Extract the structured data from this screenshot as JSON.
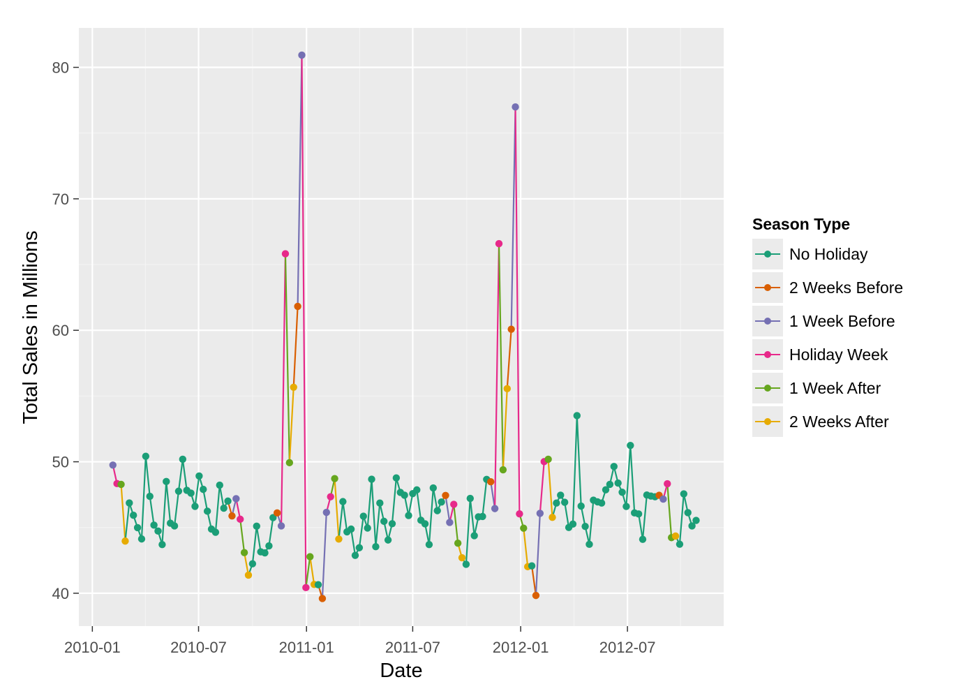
{
  "chart_data": {
    "type": "line",
    "title": "",
    "xlabel": "Date",
    "ylabel": "Total Sales in Millions",
    "x_ticks": [
      "2010-01",
      "2010-07",
      "2011-01",
      "2011-07",
      "2012-01",
      "2012-07"
    ],
    "y_ticks": [
      40,
      50,
      60,
      70,
      80
    ],
    "xlim": [
      "2009-12-09",
      "2012-12-12"
    ],
    "ylim": [
      37.5,
      83.0
    ],
    "grid": true,
    "background": "#ebebeb",
    "legend": {
      "title": "Season Type",
      "position": "right",
      "entries": [
        {
          "name": "No Holiday",
          "color": "#1b9e77"
        },
        {
          "name": "2 Weeks Before",
          "color": "#d95f02"
        },
        {
          "name": "1 Week Before",
          "color": "#7570b3"
        },
        {
          "name": "Holiday Week",
          "color": "#e7298a"
        },
        {
          "name": "1 Week After",
          "color": "#66a61e"
        },
        {
          "name": "2 Weeks After",
          "color": "#e6ab02"
        }
      ]
    },
    "series": [
      {
        "name": "Total Sales",
        "points": [
          {
            "x": "2010-02-05",
            "y": 49.75,
            "type": "1 Week Before"
          },
          {
            "x": "2010-02-12",
            "y": 48.34,
            "type": "Holiday Week"
          },
          {
            "x": "2010-02-19",
            "y": 48.28,
            "type": "1 Week After"
          },
          {
            "x": "2010-02-26",
            "y": 43.97,
            "type": "2 Weeks After"
          },
          {
            "x": "2010-03-05",
            "y": 46.87,
            "type": "No Holiday"
          },
          {
            "x": "2010-03-12",
            "y": 45.93,
            "type": "No Holiday"
          },
          {
            "x": "2010-03-19",
            "y": 44.99,
            "type": "No Holiday"
          },
          {
            "x": "2010-03-26",
            "y": 44.13,
            "type": "No Holiday"
          },
          {
            "x": "2010-04-02",
            "y": 50.42,
            "type": "No Holiday"
          },
          {
            "x": "2010-04-09",
            "y": 47.37,
            "type": "No Holiday"
          },
          {
            "x": "2010-04-16",
            "y": 45.18,
            "type": "No Holiday"
          },
          {
            "x": "2010-04-23",
            "y": 44.73,
            "type": "No Holiday"
          },
          {
            "x": "2010-04-30",
            "y": 43.7,
            "type": "No Holiday"
          },
          {
            "x": "2010-05-07",
            "y": 48.5,
            "type": "No Holiday"
          },
          {
            "x": "2010-05-14",
            "y": 45.33,
            "type": "No Holiday"
          },
          {
            "x": "2010-05-21",
            "y": 45.12,
            "type": "No Holiday"
          },
          {
            "x": "2010-05-28",
            "y": 47.76,
            "type": "No Holiday"
          },
          {
            "x": "2010-06-04",
            "y": 50.19,
            "type": "No Holiday"
          },
          {
            "x": "2010-06-11",
            "y": 47.83,
            "type": "No Holiday"
          },
          {
            "x": "2010-06-18",
            "y": 47.62,
            "type": "No Holiday"
          },
          {
            "x": "2010-06-25",
            "y": 46.61,
            "type": "No Holiday"
          },
          {
            "x": "2010-07-02",
            "y": 48.92,
            "type": "No Holiday"
          },
          {
            "x": "2010-07-09",
            "y": 47.9,
            "type": "No Holiday"
          },
          {
            "x": "2010-07-16",
            "y": 46.24,
            "type": "No Holiday"
          },
          {
            "x": "2010-07-23",
            "y": 44.88,
            "type": "No Holiday"
          },
          {
            "x": "2010-07-30",
            "y": 44.64,
            "type": "No Holiday"
          },
          {
            "x": "2010-08-06",
            "y": 48.22,
            "type": "No Holiday"
          },
          {
            "x": "2010-08-13",
            "y": 46.47,
            "type": "No Holiday"
          },
          {
            "x": "2010-08-20",
            "y": 47.01,
            "type": "No Holiday"
          },
          {
            "x": "2010-08-27",
            "y": 45.88,
            "type": "2 Weeks Before"
          },
          {
            "x": "2010-09-03",
            "y": 47.19,
            "type": "1 Week Before"
          },
          {
            "x": "2010-09-10",
            "y": 45.63,
            "type": "Holiday Week"
          },
          {
            "x": "2010-09-17",
            "y": 43.09,
            "type": "1 Week After"
          },
          {
            "x": "2010-09-24",
            "y": 41.38,
            "type": "2 Weeks After"
          },
          {
            "x": "2010-10-01",
            "y": 42.24,
            "type": "No Holiday"
          },
          {
            "x": "2010-10-08",
            "y": 45.1,
            "type": "No Holiday"
          },
          {
            "x": "2010-10-15",
            "y": 43.15,
            "type": "No Holiday"
          },
          {
            "x": "2010-10-22",
            "y": 43.07,
            "type": "No Holiday"
          },
          {
            "x": "2010-10-29",
            "y": 43.6,
            "type": "No Holiday"
          },
          {
            "x": "2010-11-05",
            "y": 45.75,
            "type": "No Holiday"
          },
          {
            "x": "2010-11-12",
            "y": 46.11,
            "type": "2 Weeks Before"
          },
          {
            "x": "2010-11-19",
            "y": 45.12,
            "type": "1 Week Before"
          },
          {
            "x": "2010-11-26",
            "y": 65.82,
            "type": "Holiday Week"
          },
          {
            "x": "2010-12-03",
            "y": 49.93,
            "type": "1 Week After"
          },
          {
            "x": "2010-12-10",
            "y": 55.67,
            "type": "2 Weeks After"
          },
          {
            "x": "2010-12-17",
            "y": 61.82,
            "type": "2 Weeks Before"
          },
          {
            "x": "2010-12-24",
            "y": 80.93,
            "type": "1 Week Before"
          },
          {
            "x": "2010-12-31",
            "y": 40.43,
            "type": "Holiday Week"
          },
          {
            "x": "2011-01-07",
            "y": 42.78,
            "type": "1 Week After"
          },
          {
            "x": "2011-01-14",
            "y": 40.67,
            "type": "2 Weeks After"
          },
          {
            "x": "2011-01-21",
            "y": 40.65,
            "type": "No Holiday"
          },
          {
            "x": "2011-01-28",
            "y": 39.6,
            "type": "2 Weeks Before"
          },
          {
            "x": "2011-02-04",
            "y": 46.15,
            "type": "1 Week Before"
          },
          {
            "x": "2011-02-11",
            "y": 47.34,
            "type": "Holiday Week"
          },
          {
            "x": "2011-02-18",
            "y": 48.72,
            "type": "1 Week After"
          },
          {
            "x": "2011-02-25",
            "y": 44.12,
            "type": "2 Weeks After"
          },
          {
            "x": "2011-03-04",
            "y": 46.97,
            "type": "No Holiday"
          },
          {
            "x": "2011-03-11",
            "y": 44.67,
            "type": "No Holiday"
          },
          {
            "x": "2011-03-18",
            "y": 44.88,
            "type": "No Holiday"
          },
          {
            "x": "2011-03-25",
            "y": 42.88,
            "type": "No Holiday"
          },
          {
            "x": "2011-04-01",
            "y": 43.46,
            "type": "No Holiday"
          },
          {
            "x": "2011-04-08",
            "y": 45.86,
            "type": "No Holiday"
          },
          {
            "x": "2011-04-15",
            "y": 44.96,
            "type": "No Holiday"
          },
          {
            "x": "2011-04-22",
            "y": 48.67,
            "type": "No Holiday"
          },
          {
            "x": "2011-04-29",
            "y": 43.54,
            "type": "No Holiday"
          },
          {
            "x": "2011-05-06",
            "y": 46.86,
            "type": "No Holiday"
          },
          {
            "x": "2011-05-13",
            "y": 45.47,
            "type": "No Holiday"
          },
          {
            "x": "2011-05-20",
            "y": 44.05,
            "type": "No Holiday"
          },
          {
            "x": "2011-05-27",
            "y": 45.29,
            "type": "No Holiday"
          },
          {
            "x": "2011-06-03",
            "y": 48.77,
            "type": "No Holiday"
          },
          {
            "x": "2011-06-10",
            "y": 47.67,
            "type": "No Holiday"
          },
          {
            "x": "2011-06-17",
            "y": 47.46,
            "type": "No Holiday"
          },
          {
            "x": "2011-06-24",
            "y": 45.91,
            "type": "No Holiday"
          },
          {
            "x": "2011-07-01",
            "y": 47.58,
            "type": "No Holiday"
          },
          {
            "x": "2011-07-08",
            "y": 47.86,
            "type": "No Holiday"
          },
          {
            "x": "2011-07-15",
            "y": 45.55,
            "type": "No Holiday"
          },
          {
            "x": "2011-07-22",
            "y": 45.28,
            "type": "No Holiday"
          },
          {
            "x": "2011-07-29",
            "y": 43.7,
            "type": "No Holiday"
          },
          {
            "x": "2011-08-05",
            "y": 48.01,
            "type": "No Holiday"
          },
          {
            "x": "2011-08-12",
            "y": 46.28,
            "type": "No Holiday"
          },
          {
            "x": "2011-08-19",
            "y": 46.94,
            "type": "No Holiday"
          },
          {
            "x": "2011-08-26",
            "y": 47.44,
            "type": "2 Weeks Before"
          },
          {
            "x": "2011-09-02",
            "y": 45.39,
            "type": "1 Week Before"
          },
          {
            "x": "2011-09-09",
            "y": 46.76,
            "type": "Holiday Week"
          },
          {
            "x": "2011-09-16",
            "y": 43.81,
            "type": "1 Week After"
          },
          {
            "x": "2011-09-23",
            "y": 42.7,
            "type": "2 Weeks After"
          },
          {
            "x": "2011-09-30",
            "y": 42.2,
            "type": "No Holiday"
          },
          {
            "x": "2011-10-07",
            "y": 47.21,
            "type": "No Holiday"
          },
          {
            "x": "2011-10-14",
            "y": 44.38,
            "type": "No Holiday"
          },
          {
            "x": "2011-10-21",
            "y": 45.81,
            "type": "No Holiday"
          },
          {
            "x": "2011-10-28",
            "y": 45.84,
            "type": "No Holiday"
          },
          {
            "x": "2011-11-04",
            "y": 48.66,
            "type": "No Holiday"
          },
          {
            "x": "2011-11-11",
            "y": 48.48,
            "type": "2 Weeks Before"
          },
          {
            "x": "2011-11-18",
            "y": 46.44,
            "type": "1 Week Before"
          },
          {
            "x": "2011-11-25",
            "y": 66.59,
            "type": "Holiday Week"
          },
          {
            "x": "2011-12-02",
            "y": 49.39,
            "type": "1 Week After"
          },
          {
            "x": "2011-12-09",
            "y": 55.56,
            "type": "2 Weeks After"
          },
          {
            "x": "2011-12-16",
            "y": 60.08,
            "type": "2 Weeks Before"
          },
          {
            "x": "2011-12-23",
            "y": 76.99,
            "type": "1 Week Before"
          },
          {
            "x": "2011-12-30",
            "y": 46.04,
            "type": "Holiday Week"
          },
          {
            "x": "2012-01-06",
            "y": 44.95,
            "type": "1 Week After"
          },
          {
            "x": "2012-01-13",
            "y": 42.02,
            "type": "2 Weeks After"
          },
          {
            "x": "2012-01-20",
            "y": 42.08,
            "type": "No Holiday"
          },
          {
            "x": "2012-01-27",
            "y": 39.83,
            "type": "2 Weeks Before"
          },
          {
            "x": "2012-02-03",
            "y": 46.08,
            "type": "1 Week Before"
          },
          {
            "x": "2012-02-10",
            "y": 50.01,
            "type": "Holiday Week"
          },
          {
            "x": "2012-02-17",
            "y": 50.19,
            "type": "1 Week After"
          },
          {
            "x": "2012-02-24",
            "y": 45.77,
            "type": "2 Weeks After"
          },
          {
            "x": "2012-03-02",
            "y": 46.86,
            "type": "No Holiday"
          },
          {
            "x": "2012-03-09",
            "y": 47.46,
            "type": "No Holiday"
          },
          {
            "x": "2012-03-16",
            "y": 46.92,
            "type": "No Holiday"
          },
          {
            "x": "2012-03-23",
            "y": 45.0,
            "type": "No Holiday"
          },
          {
            "x": "2012-03-30",
            "y": 45.26,
            "type": "No Holiday"
          },
          {
            "x": "2012-04-06",
            "y": 53.51,
            "type": "No Holiday"
          },
          {
            "x": "2012-04-13",
            "y": 46.63,
            "type": "No Holiday"
          },
          {
            "x": "2012-04-20",
            "y": 45.08,
            "type": "No Holiday"
          },
          {
            "x": "2012-04-27",
            "y": 43.72,
            "type": "No Holiday"
          },
          {
            "x": "2012-05-04",
            "y": 47.08,
            "type": "No Holiday"
          },
          {
            "x": "2012-05-11",
            "y": 46.95,
            "type": "No Holiday"
          },
          {
            "x": "2012-05-18",
            "y": 46.86,
            "type": "No Holiday"
          },
          {
            "x": "2012-05-25",
            "y": 47.87,
            "type": "No Holiday"
          },
          {
            "x": "2012-06-01",
            "y": 48.28,
            "type": "No Holiday"
          },
          {
            "x": "2012-06-08",
            "y": 49.64,
            "type": "No Holiday"
          },
          {
            "x": "2012-06-15",
            "y": 48.38,
            "type": "No Holiday"
          },
          {
            "x": "2012-06-22",
            "y": 47.68,
            "type": "No Holiday"
          },
          {
            "x": "2012-06-29",
            "y": 46.6,
            "type": "No Holiday"
          },
          {
            "x": "2012-07-06",
            "y": 51.24,
            "type": "No Holiday"
          },
          {
            "x": "2012-07-13",
            "y": 46.11,
            "type": "No Holiday"
          },
          {
            "x": "2012-07-20",
            "y": 46.03,
            "type": "No Holiday"
          },
          {
            "x": "2012-07-27",
            "y": 44.1,
            "type": "No Holiday"
          },
          {
            "x": "2012-08-03",
            "y": 47.47,
            "type": "No Holiday"
          },
          {
            "x": "2012-08-10",
            "y": 47.39,
            "type": "No Holiday"
          },
          {
            "x": "2012-08-17",
            "y": 47.34,
            "type": "No Holiday"
          },
          {
            "x": "2012-08-24",
            "y": 47.45,
            "type": "2 Weeks Before"
          },
          {
            "x": "2012-08-31",
            "y": 47.16,
            "type": "1 Week Before"
          },
          {
            "x": "2012-09-07",
            "y": 48.33,
            "type": "Holiday Week"
          },
          {
            "x": "2012-09-14",
            "y": 44.23,
            "type": "1 Week After"
          },
          {
            "x": "2012-09-21",
            "y": 44.35,
            "type": "2 Weeks After"
          },
          {
            "x": "2012-09-28",
            "y": 43.73,
            "type": "No Holiday"
          },
          {
            "x": "2012-10-05",
            "y": 47.56,
            "type": "No Holiday"
          },
          {
            "x": "2012-10-12",
            "y": 46.13,
            "type": "No Holiday"
          },
          {
            "x": "2012-10-19",
            "y": 45.12,
            "type": "No Holiday"
          },
          {
            "x": "2012-10-26",
            "y": 45.54,
            "type": "No Holiday"
          }
        ]
      }
    ]
  }
}
